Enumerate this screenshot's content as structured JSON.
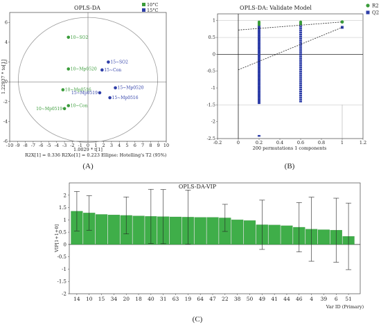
{
  "figure": {
    "panel_a": "(A)",
    "panel_b": "(B)",
    "panel_c": "(C)"
  },
  "chart_data": [
    {
      "type": "scatter",
      "title": "OPLS-DA",
      "xlabel": "1.0029 * t[1]",
      "ylabel": "1.22937 * to[1]",
      "xlim": [
        -10,
        10
      ],
      "ylim": [
        -6,
        7
      ],
      "xticks": [
        "-10",
        "-9",
        "-8",
        "-7",
        "-6",
        "-5",
        "-4",
        "-3",
        "-2",
        "-1",
        "0",
        "1",
        "2",
        "3",
        "4",
        "5",
        "6",
        "7",
        "8",
        "9",
        "10"
      ],
      "yticks": [
        "-6",
        "-4",
        "-2",
        "0",
        "2",
        "4",
        "6"
      ],
      "legend": [
        {
          "name": "10°C",
          "color": "#3a9c3a"
        },
        {
          "name": "15°C",
          "color": "#2f3fa8"
        }
      ],
      "colors": {
        "group10": "#3a9c3a",
        "group15": "#2f3fa8"
      },
      "points": [
        {
          "label": "10~SO2",
          "x": -2.5,
          "y": 4.5,
          "group": "10"
        },
        {
          "label": "10~Mp0520",
          "x": -2.5,
          "y": 1.3,
          "group": "10"
        },
        {
          "label": "10~Mp0516",
          "x": -3.2,
          "y": -0.8,
          "group": "10"
        },
        {
          "label": "10~Mp0519",
          "x": -3.0,
          "y": -2.7,
          "group": "10"
        },
        {
          "label": "10~Con",
          "x": -2.5,
          "y": -2.4,
          "group": "10"
        },
        {
          "label": "15~SO2",
          "x": 2.6,
          "y": 2.0,
          "group": "15"
        },
        {
          "label": "15~Con",
          "x": 1.8,
          "y": 1.2,
          "group": "15"
        },
        {
          "label": "15~Mp0520",
          "x": 3.5,
          "y": -0.6,
          "group": "15"
        },
        {
          "label": "15~Mp0519",
          "x": 1.5,
          "y": -1.1,
          "group": "15"
        },
        {
          "label": "15~Mp0516",
          "x": 2.8,
          "y": -1.6,
          "group": "15"
        }
      ],
      "footer": {
        "r2x": "R2X[1] = 0.336",
        "r2xo": "R2Xo[1] = 0.223",
        "ellipse": "Ellipse: Hotelling's T2 (95%)"
      }
    },
    {
      "type": "scatter",
      "title": "OPLS-DA: Validate Model",
      "xlabel": "200 permutations 1 components",
      "xlim": [
        -0.2,
        1.2
      ],
      "ylim": [
        -2.5,
        1.2
      ],
      "xticks": [
        "-0.2",
        "0",
        "0.2",
        "0.4",
        "0.6",
        "0.8",
        "1",
        "1.2"
      ],
      "yticks": [
        "-2.5",
        "-2",
        "-1.5",
        "-1",
        "-0.5",
        "0",
        "0.5",
        "1"
      ],
      "legend": [
        {
          "name": "R2",
          "color": "#3a9c3a"
        },
        {
          "name": "Q2",
          "color": "#2f3fa8"
        }
      ],
      "r2_line": {
        "intercept": 0.72,
        "end": [
          1.0,
          0.96
        ]
      },
      "q2_line": {
        "intercept": -0.46,
        "end": [
          1.0,
          0.8
        ]
      },
      "r2_points": {
        "x0.2": [
          0.96,
          0.95,
          0.93,
          0.92,
          0.9,
          0.88
        ],
        "x0.6": [
          0.96,
          0.95,
          0.93,
          0.9
        ],
        "x1": [
          0.96
        ]
      },
      "q2_ranges": {
        "x0.2": [
          -1.45,
          0.88
        ],
        "x0.2_low": -2.42,
        "x0.6": [
          -1.4,
          0.9
        ],
        "x1": [
          0.8
        ]
      }
    },
    {
      "type": "bar",
      "title": "OPLS-DA-VIP",
      "xlabel": "Var ID (Primary)",
      "ylabel": "VIP[1+1+0]",
      "ylim": [
        -2,
        2.5
      ],
      "yticks": [
        "-2",
        "-1.5",
        "-1",
        "-0.5",
        "0",
        "0.5",
        "1",
        "1.5",
        "2"
      ],
      "categories": [
        "14",
        "10",
        "15",
        "34",
        "20",
        "18",
        "40",
        "31",
        "63",
        "19",
        "64",
        "47",
        "22",
        "38",
        "50",
        "49",
        "41",
        "44",
        "46",
        "4",
        "39",
        "6",
        "51"
      ],
      "values": [
        1.35,
        1.28,
        1.22,
        1.2,
        1.18,
        1.16,
        1.14,
        1.13,
        1.12,
        1.11,
        1.1,
        1.1,
        1.08,
        1.0,
        0.97,
        0.8,
        0.79,
        0.76,
        0.7,
        0.62,
        0.6,
        0.58,
        0.33
      ],
      "errors": [
        0.8,
        0.7,
        0.0,
        0.0,
        0.75,
        0.0,
        1.1,
        1.1,
        0.0,
        1.1,
        0.0,
        0.0,
        0.55,
        0.0,
        0.0,
        1.0,
        0.0,
        0.0,
        1.0,
        1.3,
        0.0,
        1.3,
        1.35
      ],
      "color": "#3fae49"
    }
  ]
}
